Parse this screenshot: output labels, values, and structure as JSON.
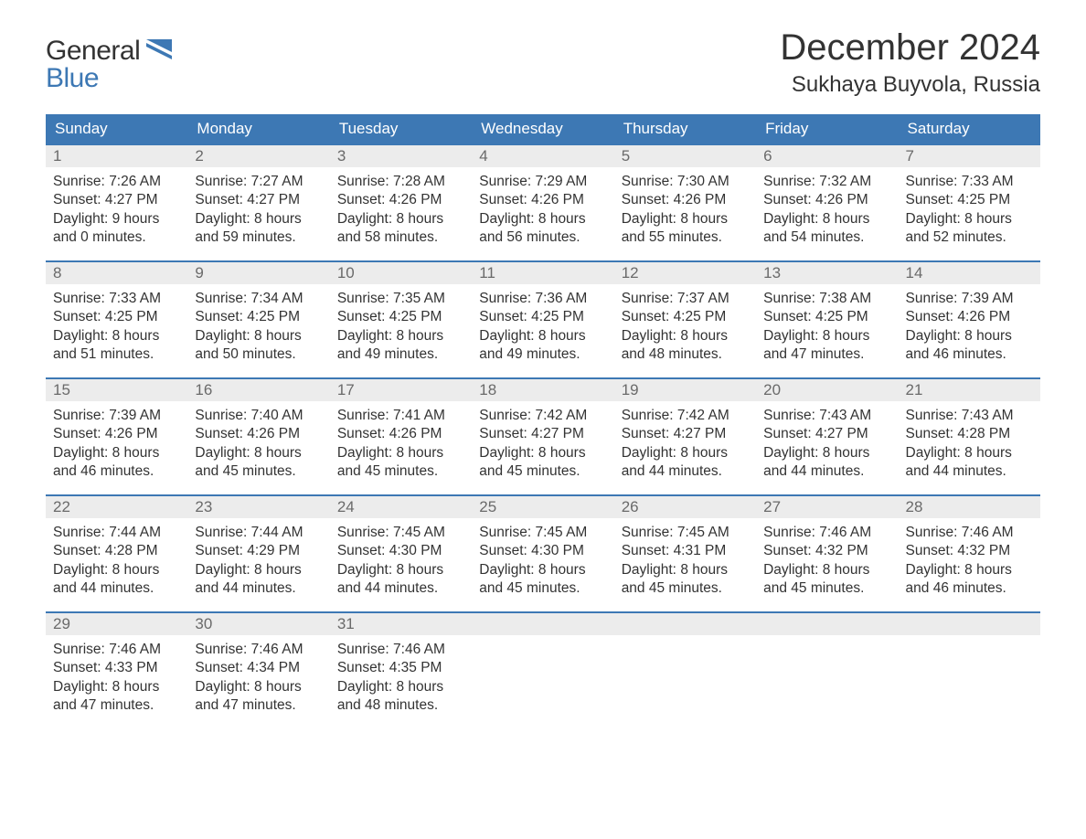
{
  "logo": {
    "line1": "General",
    "line2": "Blue",
    "flag_color": "#3d78b4",
    "text_color_primary": "#333333",
    "text_color_accent": "#3d78b4"
  },
  "header": {
    "month_title": "December 2024",
    "location": "Sukhaya Buyvola, Russia"
  },
  "styling": {
    "header_row_bg": "#3d78b4",
    "header_row_text": "#ffffff",
    "daynum_bg": "#ececec",
    "daynum_text": "#6a6a6a",
    "week_border": "#3d78b4",
    "body_text": "#333333",
    "page_bg": "#ffffff",
    "th_fontsize": 17,
    "daynum_fontsize": 17,
    "cell_fontsize": 15.5,
    "title_fontsize": 40,
    "location_fontsize": 24,
    "logo_fontsize": 30
  },
  "day_headers": [
    "Sunday",
    "Monday",
    "Tuesday",
    "Wednesday",
    "Thursday",
    "Friday",
    "Saturday"
  ],
  "labels": {
    "sunrise": "Sunrise:",
    "sunset": "Sunset:",
    "daylight": "Daylight:"
  },
  "weeks": [
    [
      {
        "day": "1",
        "sunrise": "7:26 AM",
        "sunset": "4:27 PM",
        "daylight_line1": "9 hours",
        "daylight_line2": "and 0 minutes."
      },
      {
        "day": "2",
        "sunrise": "7:27 AM",
        "sunset": "4:27 PM",
        "daylight_line1": "8 hours",
        "daylight_line2": "and 59 minutes."
      },
      {
        "day": "3",
        "sunrise": "7:28 AM",
        "sunset": "4:26 PM",
        "daylight_line1": "8 hours",
        "daylight_line2": "and 58 minutes."
      },
      {
        "day": "4",
        "sunrise": "7:29 AM",
        "sunset": "4:26 PM",
        "daylight_line1": "8 hours",
        "daylight_line2": "and 56 minutes."
      },
      {
        "day": "5",
        "sunrise": "7:30 AM",
        "sunset": "4:26 PM",
        "daylight_line1": "8 hours",
        "daylight_line2": "and 55 minutes."
      },
      {
        "day": "6",
        "sunrise": "7:32 AM",
        "sunset": "4:26 PM",
        "daylight_line1": "8 hours",
        "daylight_line2": "and 54 minutes."
      },
      {
        "day": "7",
        "sunrise": "7:33 AM",
        "sunset": "4:25 PM",
        "daylight_line1": "8 hours",
        "daylight_line2": "and 52 minutes."
      }
    ],
    [
      {
        "day": "8",
        "sunrise": "7:33 AM",
        "sunset": "4:25 PM",
        "daylight_line1": "8 hours",
        "daylight_line2": "and 51 minutes."
      },
      {
        "day": "9",
        "sunrise": "7:34 AM",
        "sunset": "4:25 PM",
        "daylight_line1": "8 hours",
        "daylight_line2": "and 50 minutes."
      },
      {
        "day": "10",
        "sunrise": "7:35 AM",
        "sunset": "4:25 PM",
        "daylight_line1": "8 hours",
        "daylight_line2": "and 49 minutes."
      },
      {
        "day": "11",
        "sunrise": "7:36 AM",
        "sunset": "4:25 PM",
        "daylight_line1": "8 hours",
        "daylight_line2": "and 49 minutes."
      },
      {
        "day": "12",
        "sunrise": "7:37 AM",
        "sunset": "4:25 PM",
        "daylight_line1": "8 hours",
        "daylight_line2": "and 48 minutes."
      },
      {
        "day": "13",
        "sunrise": "7:38 AM",
        "sunset": "4:25 PM",
        "daylight_line1": "8 hours",
        "daylight_line2": "and 47 minutes."
      },
      {
        "day": "14",
        "sunrise": "7:39 AM",
        "sunset": "4:26 PM",
        "daylight_line1": "8 hours",
        "daylight_line2": "and 46 minutes."
      }
    ],
    [
      {
        "day": "15",
        "sunrise": "7:39 AM",
        "sunset": "4:26 PM",
        "daylight_line1": "8 hours",
        "daylight_line2": "and 46 minutes."
      },
      {
        "day": "16",
        "sunrise": "7:40 AM",
        "sunset": "4:26 PM",
        "daylight_line1": "8 hours",
        "daylight_line2": "and 45 minutes."
      },
      {
        "day": "17",
        "sunrise": "7:41 AM",
        "sunset": "4:26 PM",
        "daylight_line1": "8 hours",
        "daylight_line2": "and 45 minutes."
      },
      {
        "day": "18",
        "sunrise": "7:42 AM",
        "sunset": "4:27 PM",
        "daylight_line1": "8 hours",
        "daylight_line2": "and 45 minutes."
      },
      {
        "day": "19",
        "sunrise": "7:42 AM",
        "sunset": "4:27 PM",
        "daylight_line1": "8 hours",
        "daylight_line2": "and 44 minutes."
      },
      {
        "day": "20",
        "sunrise": "7:43 AM",
        "sunset": "4:27 PM",
        "daylight_line1": "8 hours",
        "daylight_line2": "and 44 minutes."
      },
      {
        "day": "21",
        "sunrise": "7:43 AM",
        "sunset": "4:28 PM",
        "daylight_line1": "8 hours",
        "daylight_line2": "and 44 minutes."
      }
    ],
    [
      {
        "day": "22",
        "sunrise": "7:44 AM",
        "sunset": "4:28 PM",
        "daylight_line1": "8 hours",
        "daylight_line2": "and 44 minutes."
      },
      {
        "day": "23",
        "sunrise": "7:44 AM",
        "sunset": "4:29 PM",
        "daylight_line1": "8 hours",
        "daylight_line2": "and 44 minutes."
      },
      {
        "day": "24",
        "sunrise": "7:45 AM",
        "sunset": "4:30 PM",
        "daylight_line1": "8 hours",
        "daylight_line2": "and 44 minutes."
      },
      {
        "day": "25",
        "sunrise": "7:45 AM",
        "sunset": "4:30 PM",
        "daylight_line1": "8 hours",
        "daylight_line2": "and 45 minutes."
      },
      {
        "day": "26",
        "sunrise": "7:45 AM",
        "sunset": "4:31 PM",
        "daylight_line1": "8 hours",
        "daylight_line2": "and 45 minutes."
      },
      {
        "day": "27",
        "sunrise": "7:46 AM",
        "sunset": "4:32 PM",
        "daylight_line1": "8 hours",
        "daylight_line2": "and 45 minutes."
      },
      {
        "day": "28",
        "sunrise": "7:46 AM",
        "sunset": "4:32 PM",
        "daylight_line1": "8 hours",
        "daylight_line2": "and 46 minutes."
      }
    ],
    [
      {
        "day": "29",
        "sunrise": "7:46 AM",
        "sunset": "4:33 PM",
        "daylight_line1": "8 hours",
        "daylight_line2": "and 47 minutes."
      },
      {
        "day": "30",
        "sunrise": "7:46 AM",
        "sunset": "4:34 PM",
        "daylight_line1": "8 hours",
        "daylight_line2": "and 47 minutes."
      },
      {
        "day": "31",
        "sunrise": "7:46 AM",
        "sunset": "4:35 PM",
        "daylight_line1": "8 hours",
        "daylight_line2": "and 48 minutes."
      },
      {
        "empty": true
      },
      {
        "empty": true
      },
      {
        "empty": true
      },
      {
        "empty": true
      }
    ]
  ]
}
